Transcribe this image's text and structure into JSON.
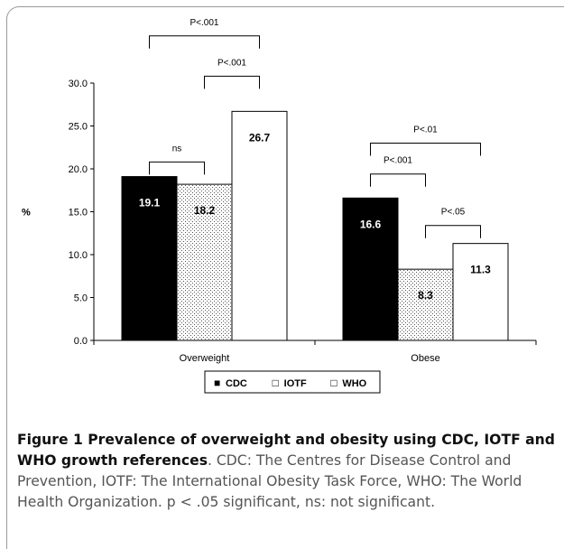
{
  "chart_data": {
    "type": "bar",
    "categories": [
      "Overweight",
      "Obese"
    ],
    "series": [
      {
        "name": "CDC",
        "values": [
          19.1,
          16.6
        ]
      },
      {
        "name": "IOTF",
        "values": [
          18.2,
          8.3
        ]
      },
      {
        "name": "WHO",
        "values": [
          26.7,
          11.3
        ]
      }
    ],
    "value_labels": [
      [
        "19.1",
        "18.2",
        "26.7"
      ],
      [
        "16.6",
        "8.3",
        "11.3"
      ]
    ],
    "ylabel": "%",
    "ylim": [
      0,
      30
    ],
    "yticks": [
      "0.0",
      "5.0",
      "10.0",
      "15.0",
      "20.0",
      "25.0",
      "30.0"
    ],
    "legend_position": "bottom",
    "series_colors": [
      "#000000",
      "#ffffff",
      "#ffffff"
    ],
    "series_fill": [
      "solid",
      "dotted",
      "blank"
    ],
    "significance": [
      {
        "category": 0,
        "from": 0,
        "to": 1,
        "label": "ns",
        "level": 20.8
      },
      {
        "category": 0,
        "from": 1,
        "to": 2,
        "label": "P<.001",
        "level": 30.8
      },
      {
        "category": 0,
        "from": 0,
        "to": 2,
        "label": "P<.001",
        "level": 35.5
      },
      {
        "category": 1,
        "from": 1,
        "to": 2,
        "label": "P<.05",
        "level": 13.4
      },
      {
        "category": 1,
        "from": 0,
        "to": 1,
        "label": "P<.001",
        "level": 19.4
      },
      {
        "category": 1,
        "from": 0,
        "to": 2,
        "label": "P<.01",
        "level": 23.0
      }
    ]
  },
  "caption": {
    "title": "Figure 1 Prevalence of overweight and obesity using CDC, IOTF and WHO growth references",
    "text": ". CDC: The Centres for Disease Control and Prevention, IOTF: The International Obesity Task Force, WHO: The World Health Organization. p < .05 significant, ns: not significant."
  }
}
